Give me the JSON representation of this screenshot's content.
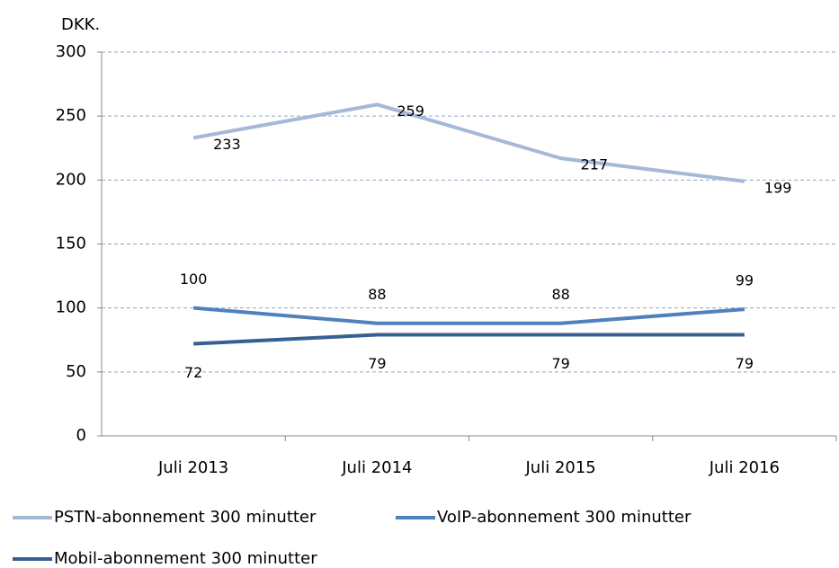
{
  "chart_data": {
    "type": "line",
    "y_label": "DKK.",
    "categories": [
      "Juli 2013",
      "Juli 2014",
      "Juli 2015",
      "Juli 2016"
    ],
    "series": [
      {
        "name": "PSTN-abonnement 300 minutter",
        "color": "#a5b8d7",
        "values": [
          233,
          259,
          217,
          199
        ]
      },
      {
        "name": "VoIP-abonnement 300 minutter",
        "color": "#4f81bd",
        "values": [
          100,
          88,
          88,
          99
        ]
      },
      {
        "name": "Mobil-abonnement 300 minutter",
        "color": "#376092",
        "values": [
          72,
          79,
          79,
          79
        ]
      }
    ],
    "ylim": [
      0,
      300
    ],
    "yticks": [
      0,
      50,
      100,
      150,
      200,
      250,
      300
    ],
    "grid": true,
    "data_labels": true
  }
}
